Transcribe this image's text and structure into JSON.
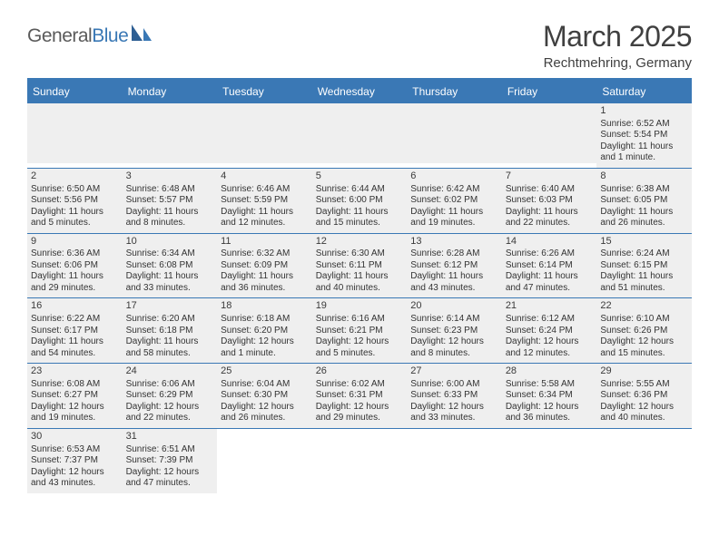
{
  "logo": {
    "text1": "General",
    "text2": "Blue"
  },
  "title": "March 2025",
  "location": "Rechtmehring, Germany",
  "colors": {
    "accent": "#3a78b5",
    "cell_bg": "#efefef",
    "text": "#333333",
    "title": "#404040"
  },
  "dayHeaders": [
    "Sunday",
    "Monday",
    "Tuesday",
    "Wednesday",
    "Thursday",
    "Friday",
    "Saturday"
  ],
  "weeks": [
    [
      null,
      null,
      null,
      null,
      null,
      null,
      {
        "n": "1",
        "sr": "Sunrise: 6:52 AM",
        "ss": "Sunset: 5:54 PM",
        "dl1": "Daylight: 11 hours",
        "dl2": "and 1 minute."
      }
    ],
    [
      {
        "n": "2",
        "sr": "Sunrise: 6:50 AM",
        "ss": "Sunset: 5:56 PM",
        "dl1": "Daylight: 11 hours",
        "dl2": "and 5 minutes."
      },
      {
        "n": "3",
        "sr": "Sunrise: 6:48 AM",
        "ss": "Sunset: 5:57 PM",
        "dl1": "Daylight: 11 hours",
        "dl2": "and 8 minutes."
      },
      {
        "n": "4",
        "sr": "Sunrise: 6:46 AM",
        "ss": "Sunset: 5:59 PM",
        "dl1": "Daylight: 11 hours",
        "dl2": "and 12 minutes."
      },
      {
        "n": "5",
        "sr": "Sunrise: 6:44 AM",
        "ss": "Sunset: 6:00 PM",
        "dl1": "Daylight: 11 hours",
        "dl2": "and 15 minutes."
      },
      {
        "n": "6",
        "sr": "Sunrise: 6:42 AM",
        "ss": "Sunset: 6:02 PM",
        "dl1": "Daylight: 11 hours",
        "dl2": "and 19 minutes."
      },
      {
        "n": "7",
        "sr": "Sunrise: 6:40 AM",
        "ss": "Sunset: 6:03 PM",
        "dl1": "Daylight: 11 hours",
        "dl2": "and 22 minutes."
      },
      {
        "n": "8",
        "sr": "Sunrise: 6:38 AM",
        "ss": "Sunset: 6:05 PM",
        "dl1": "Daylight: 11 hours",
        "dl2": "and 26 minutes."
      }
    ],
    [
      {
        "n": "9",
        "sr": "Sunrise: 6:36 AM",
        "ss": "Sunset: 6:06 PM",
        "dl1": "Daylight: 11 hours",
        "dl2": "and 29 minutes."
      },
      {
        "n": "10",
        "sr": "Sunrise: 6:34 AM",
        "ss": "Sunset: 6:08 PM",
        "dl1": "Daylight: 11 hours",
        "dl2": "and 33 minutes."
      },
      {
        "n": "11",
        "sr": "Sunrise: 6:32 AM",
        "ss": "Sunset: 6:09 PM",
        "dl1": "Daylight: 11 hours",
        "dl2": "and 36 minutes."
      },
      {
        "n": "12",
        "sr": "Sunrise: 6:30 AM",
        "ss": "Sunset: 6:11 PM",
        "dl1": "Daylight: 11 hours",
        "dl2": "and 40 minutes."
      },
      {
        "n": "13",
        "sr": "Sunrise: 6:28 AM",
        "ss": "Sunset: 6:12 PM",
        "dl1": "Daylight: 11 hours",
        "dl2": "and 43 minutes."
      },
      {
        "n": "14",
        "sr": "Sunrise: 6:26 AM",
        "ss": "Sunset: 6:14 PM",
        "dl1": "Daylight: 11 hours",
        "dl2": "and 47 minutes."
      },
      {
        "n": "15",
        "sr": "Sunrise: 6:24 AM",
        "ss": "Sunset: 6:15 PM",
        "dl1": "Daylight: 11 hours",
        "dl2": "and 51 minutes."
      }
    ],
    [
      {
        "n": "16",
        "sr": "Sunrise: 6:22 AM",
        "ss": "Sunset: 6:17 PM",
        "dl1": "Daylight: 11 hours",
        "dl2": "and 54 minutes."
      },
      {
        "n": "17",
        "sr": "Sunrise: 6:20 AM",
        "ss": "Sunset: 6:18 PM",
        "dl1": "Daylight: 11 hours",
        "dl2": "and 58 minutes."
      },
      {
        "n": "18",
        "sr": "Sunrise: 6:18 AM",
        "ss": "Sunset: 6:20 PM",
        "dl1": "Daylight: 12 hours",
        "dl2": "and 1 minute."
      },
      {
        "n": "19",
        "sr": "Sunrise: 6:16 AM",
        "ss": "Sunset: 6:21 PM",
        "dl1": "Daylight: 12 hours",
        "dl2": "and 5 minutes."
      },
      {
        "n": "20",
        "sr": "Sunrise: 6:14 AM",
        "ss": "Sunset: 6:23 PM",
        "dl1": "Daylight: 12 hours",
        "dl2": "and 8 minutes."
      },
      {
        "n": "21",
        "sr": "Sunrise: 6:12 AM",
        "ss": "Sunset: 6:24 PM",
        "dl1": "Daylight: 12 hours",
        "dl2": "and 12 minutes."
      },
      {
        "n": "22",
        "sr": "Sunrise: 6:10 AM",
        "ss": "Sunset: 6:26 PM",
        "dl1": "Daylight: 12 hours",
        "dl2": "and 15 minutes."
      }
    ],
    [
      {
        "n": "23",
        "sr": "Sunrise: 6:08 AM",
        "ss": "Sunset: 6:27 PM",
        "dl1": "Daylight: 12 hours",
        "dl2": "and 19 minutes."
      },
      {
        "n": "24",
        "sr": "Sunrise: 6:06 AM",
        "ss": "Sunset: 6:29 PM",
        "dl1": "Daylight: 12 hours",
        "dl2": "and 22 minutes."
      },
      {
        "n": "25",
        "sr": "Sunrise: 6:04 AM",
        "ss": "Sunset: 6:30 PM",
        "dl1": "Daylight: 12 hours",
        "dl2": "and 26 minutes."
      },
      {
        "n": "26",
        "sr": "Sunrise: 6:02 AM",
        "ss": "Sunset: 6:31 PM",
        "dl1": "Daylight: 12 hours",
        "dl2": "and 29 minutes."
      },
      {
        "n": "27",
        "sr": "Sunrise: 6:00 AM",
        "ss": "Sunset: 6:33 PM",
        "dl1": "Daylight: 12 hours",
        "dl2": "and 33 minutes."
      },
      {
        "n": "28",
        "sr": "Sunrise: 5:58 AM",
        "ss": "Sunset: 6:34 PM",
        "dl1": "Daylight: 12 hours",
        "dl2": "and 36 minutes."
      },
      {
        "n": "29",
        "sr": "Sunrise: 5:55 AM",
        "ss": "Sunset: 6:36 PM",
        "dl1": "Daylight: 12 hours",
        "dl2": "and 40 minutes."
      }
    ],
    [
      {
        "n": "30",
        "sr": "Sunrise: 6:53 AM",
        "ss": "Sunset: 7:37 PM",
        "dl1": "Daylight: 12 hours",
        "dl2": "and 43 minutes."
      },
      {
        "n": "31",
        "sr": "Sunrise: 6:51 AM",
        "ss": "Sunset: 7:39 PM",
        "dl1": "Daylight: 12 hours",
        "dl2": "and 47 minutes."
      },
      null,
      null,
      null,
      null,
      null
    ]
  ]
}
